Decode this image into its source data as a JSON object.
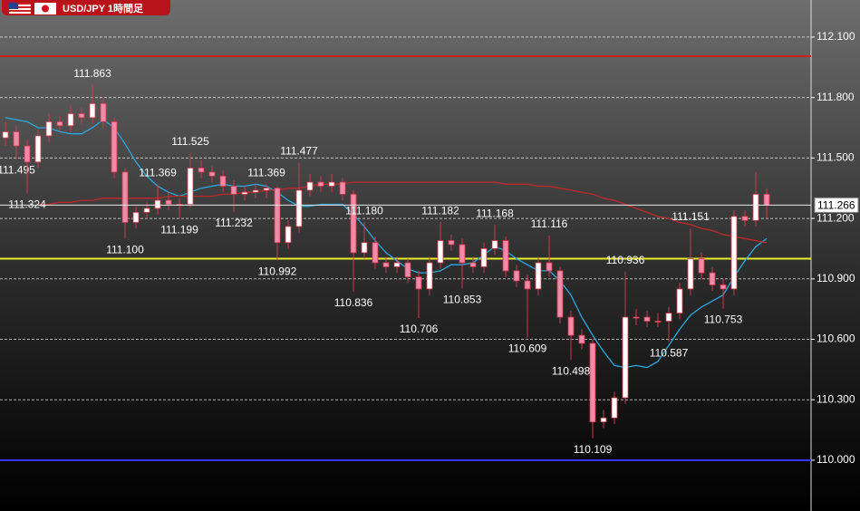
{
  "chart_data": {
    "type": "candlestick",
    "title": "USD/JPY 1時間足",
    "ylim": [
      109.748,
      112.284
    ],
    "yticks": [
      {
        "value": 110,
        "label": "110.000"
      },
      {
        "value": 110.3,
        "label": "110.300"
      },
      {
        "value": 110.6,
        "label": "110.600"
      },
      {
        "value": 110.9,
        "label": "110.900"
      },
      {
        "value": 111.2,
        "label": "111.200"
      },
      {
        "value": 111.5,
        "label": "111.500"
      },
      {
        "value": 111.8,
        "label": "111.800"
      },
      {
        "value": 112.1,
        "label": "112.100"
      }
    ],
    "grid": true,
    "up_color": "#ffffff",
    "down_color": "#f08aa8",
    "edge_color": "#d03a4a",
    "candles": {
      "open": [
        111.6,
        111.63,
        111.56,
        111.48,
        111.61,
        111.68,
        111.66,
        111.72,
        111.7,
        111.77,
        111.68,
        111.43,
        111.18,
        111.23,
        111.25,
        111.29,
        111.27,
        111.27,
        111.45,
        111.43,
        111.41,
        111.36,
        111.32,
        111.33,
        111.34,
        111.35,
        111.08,
        111.16,
        111.34,
        111.38,
        111.36,
        111.38,
        111.32,
        111.03,
        111.08,
        110.98,
        110.96,
        110.98,
        110.91,
        110.85,
        110.98,
        111.09,
        111.07,
        110.98,
        110.96,
        111.05,
        111.09,
        110.94,
        110.89,
        110.85,
        110.98,
        110.94,
        110.71,
        110.62,
        110.58,
        110.19,
        110.21,
        110.31,
        110.71,
        110.71,
        110.69,
        110.69,
        110.73,
        110.85,
        111.0,
        110.93,
        110.87,
        110.85,
        111.21,
        111.19,
        111.32
      ],
      "high": [
        111.68,
        111.66,
        111.59,
        111.64,
        111.72,
        111.71,
        111.76,
        111.75,
        111.863,
        111.8,
        111.7,
        111.45,
        111.26,
        111.28,
        111.369,
        111.33,
        111.3,
        111.525,
        111.49,
        111.46,
        111.44,
        111.39,
        111.36,
        111.37,
        111.369,
        111.36,
        111.19,
        111.477,
        111.42,
        111.41,
        111.42,
        111.4,
        111.34,
        111.18,
        111.11,
        111.01,
        111.01,
        111.0,
        110.94,
        111.01,
        111.182,
        111.12,
        111.1,
        111.01,
        111.08,
        111.168,
        111.11,
        110.97,
        110.92,
        111.01,
        111.116,
        110.96,
        110.74,
        110.65,
        110.6,
        110.25,
        110.34,
        110.936,
        110.75,
        110.74,
        110.73,
        110.76,
        110.88,
        111.151,
        111.03,
        110.96,
        110.9,
        111.24,
        111.24,
        111.43,
        111.35
      ],
      "low": [
        111.56,
        111.495,
        111.324,
        111.45,
        111.58,
        111.63,
        111.63,
        111.67,
        111.67,
        111.65,
        111.4,
        111.1,
        111.15,
        111.2,
        111.22,
        111.24,
        111.199,
        111.25,
        111.4,
        111.38,
        111.33,
        111.232,
        111.29,
        111.3,
        111.3,
        110.992,
        111.05,
        111.13,
        111.31,
        111.33,
        111.33,
        111.29,
        110.836,
        111.0,
        110.95,
        110.93,
        110.93,
        110.88,
        110.706,
        110.82,
        110.95,
        111.04,
        110.853,
        110.93,
        110.93,
        111.02,
        110.91,
        110.86,
        110.609,
        110.82,
        110.91,
        110.68,
        110.498,
        110.55,
        110.109,
        110.16,
        110.18,
        110.28,
        110.67,
        110.66,
        110.66,
        110.587,
        110.7,
        110.82,
        110.9,
        110.84,
        110.753,
        110.82,
        111.16,
        111.16,
        111.2
      ],
      "close": [
        111.63,
        111.56,
        111.48,
        111.61,
        111.68,
        111.66,
        111.72,
        111.7,
        111.77,
        111.68,
        111.43,
        111.18,
        111.23,
        111.25,
        111.29,
        111.27,
        111.27,
        111.45,
        111.43,
        111.41,
        111.36,
        111.32,
        111.33,
        111.34,
        111.35,
        111.08,
        111.16,
        111.34,
        111.38,
        111.36,
        111.38,
        111.32,
        111.03,
        111.08,
        110.98,
        110.96,
        110.98,
        110.91,
        110.85,
        110.98,
        111.09,
        111.07,
        110.98,
        110.96,
        111.05,
        111.09,
        110.94,
        110.89,
        110.85,
        110.98,
        110.94,
        110.71,
        110.62,
        110.58,
        110.19,
        110.21,
        110.31,
        110.71,
        110.71,
        110.69,
        110.69,
        110.73,
        110.85,
        111.0,
        110.93,
        110.87,
        110.85,
        111.21,
        111.19,
        111.32,
        111.266
      ],
      "high_labels": [
        null,
        null,
        null,
        null,
        null,
        null,
        null,
        null,
        "111.863",
        null,
        null,
        null,
        null,
        null,
        "111.369",
        null,
        null,
        "111.525",
        null,
        null,
        null,
        null,
        null,
        null,
        "111.369",
        null,
        null,
        "111.477",
        null,
        null,
        null,
        null,
        null,
        "111.180",
        null,
        null,
        null,
        null,
        null,
        null,
        "111.182",
        null,
        null,
        null,
        null,
        "111.168",
        null,
        null,
        null,
        null,
        "111.116",
        null,
        null,
        null,
        null,
        null,
        null,
        "110.936",
        null,
        null,
        null,
        null,
        null,
        "111.151",
        null,
        null,
        null,
        null,
        null,
        null,
        null
      ],
      "low_labels": [
        null,
        "111.495",
        "111.324",
        null,
        null,
        null,
        null,
        null,
        null,
        null,
        null,
        "111.100",
        null,
        null,
        null,
        null,
        "111.199",
        null,
        null,
        null,
        null,
        "111.232",
        null,
        null,
        null,
        "110.992",
        null,
        null,
        null,
        null,
        null,
        null,
        "110.836",
        null,
        null,
        null,
        null,
        null,
        "110.706",
        null,
        null,
        null,
        "110.853",
        null,
        null,
        null,
        null,
        null,
        "110.609",
        null,
        null,
        null,
        "110.498",
        null,
        "110.109",
        null,
        null,
        null,
        null,
        null,
        null,
        "110.587",
        null,
        null,
        null,
        null,
        "110.753",
        null,
        null,
        null,
        null
      ]
    },
    "lines": [
      {
        "color": "#2aa8e0",
        "values": [
          111.7,
          111.69,
          111.68,
          111.65,
          111.65,
          111.63,
          111.62,
          111.62,
          111.65,
          111.69,
          111.65,
          111.57,
          111.48,
          111.41,
          111.36,
          111.33,
          111.31,
          111.33,
          111.35,
          111.36,
          111.37,
          111.36,
          111.36,
          111.37,
          111.36,
          111.33,
          111.29,
          111.26,
          111.26,
          111.27,
          111.27,
          111.27,
          111.22,
          111.16,
          111.09,
          111.03,
          110.99,
          110.95,
          110.93,
          110.93,
          110.94,
          110.97,
          110.97,
          110.98,
          111.02,
          111.06,
          111.04,
          111.0,
          110.97,
          110.94,
          110.94,
          110.89,
          110.82,
          110.71,
          110.62,
          110.54,
          110.47,
          110.46,
          110.47,
          110.46,
          110.49,
          110.57,
          110.65,
          110.72,
          110.76,
          110.79,
          110.82,
          110.91,
          110.99,
          111.06,
          111.1
        ]
      },
      {
        "color": "#c0282a",
        "values": [
          null,
          null,
          null,
          111.27,
          111.27,
          111.28,
          111.28,
          111.29,
          111.29,
          111.3,
          111.3,
          111.3,
          111.3,
          111.3,
          111.3,
          111.31,
          111.31,
          111.31,
          111.31,
          111.31,
          111.32,
          111.32,
          111.33,
          111.33,
          111.34,
          111.34,
          111.35,
          111.35,
          111.36,
          111.37,
          111.37,
          111.37,
          111.38,
          111.38,
          111.38,
          111.38,
          111.38,
          111.38,
          111.38,
          111.38,
          111.38,
          111.38,
          111.38,
          111.38,
          111.38,
          111.38,
          111.37,
          111.37,
          111.37,
          111.36,
          111.36,
          111.35,
          111.34,
          111.33,
          111.32,
          111.3,
          111.29,
          111.27,
          111.25,
          111.23,
          111.21,
          111.2,
          111.18,
          111.17,
          111.15,
          111.14,
          111.12,
          111.11,
          111.1,
          111.09,
          111.08
        ]
      }
    ],
    "levels": [
      {
        "value": 112.005,
        "color": "#d0201a"
      },
      {
        "value": 111.0,
        "color": "#e6f02a"
      },
      {
        "value": 110.0,
        "color": "#3a34ff"
      }
    ],
    "last_price": 111.266
  }
}
